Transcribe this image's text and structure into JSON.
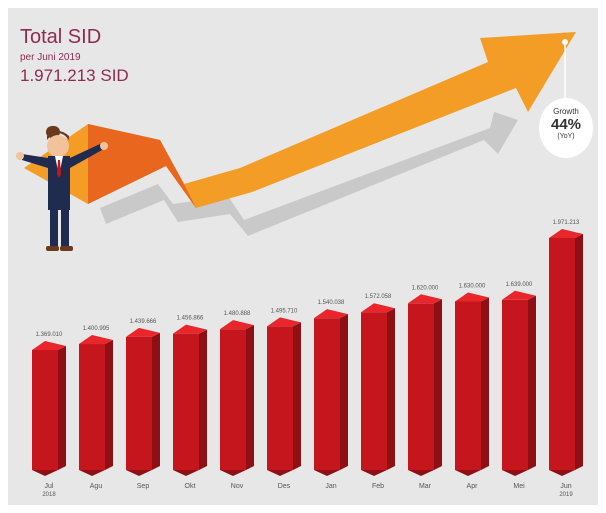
{
  "header": {
    "title": "Total SID",
    "subtitle": "per Juni 2019",
    "total": "1.971.213 SID"
  },
  "growth": {
    "label": "Growth",
    "value": "44%",
    "note": "(YoY)"
  },
  "colors": {
    "bar_front": "#c4161c",
    "bar_side": "#8e1014",
    "bar_top": "#e8262c",
    "title_text": "#8e2b52",
    "arrow_orange": "#f39c26",
    "arrow_dark_orange": "#e8661e",
    "background": "#e7e7e7"
  },
  "chart_data": {
    "type": "bar",
    "categories": [
      "Jul 2018",
      "Agu",
      "Sep",
      "Okt",
      "Nov",
      "Des",
      "Jan",
      "Feb",
      "Mar",
      "Apr",
      "Mei",
      "Jun 2019"
    ],
    "values": [
      1369010,
      1400995,
      1439666,
      1456866,
      1480888,
      1495710,
      1540038,
      1572058,
      1620000,
      1630000,
      1639000,
      1971213
    ],
    "value_labels": [
      "1.369.010",
      "1.400.995",
      "1.439.666",
      "1.456.866",
      "1.480.888",
      "1.495.710",
      "1.540.038",
      "1.572.058",
      "1.620.000",
      "1.630.000",
      "1.639.000",
      "1.971.213"
    ],
    "title": "Total SID",
    "xlabel": "",
    "ylabel": "",
    "grid": false,
    "legend": "none"
  }
}
